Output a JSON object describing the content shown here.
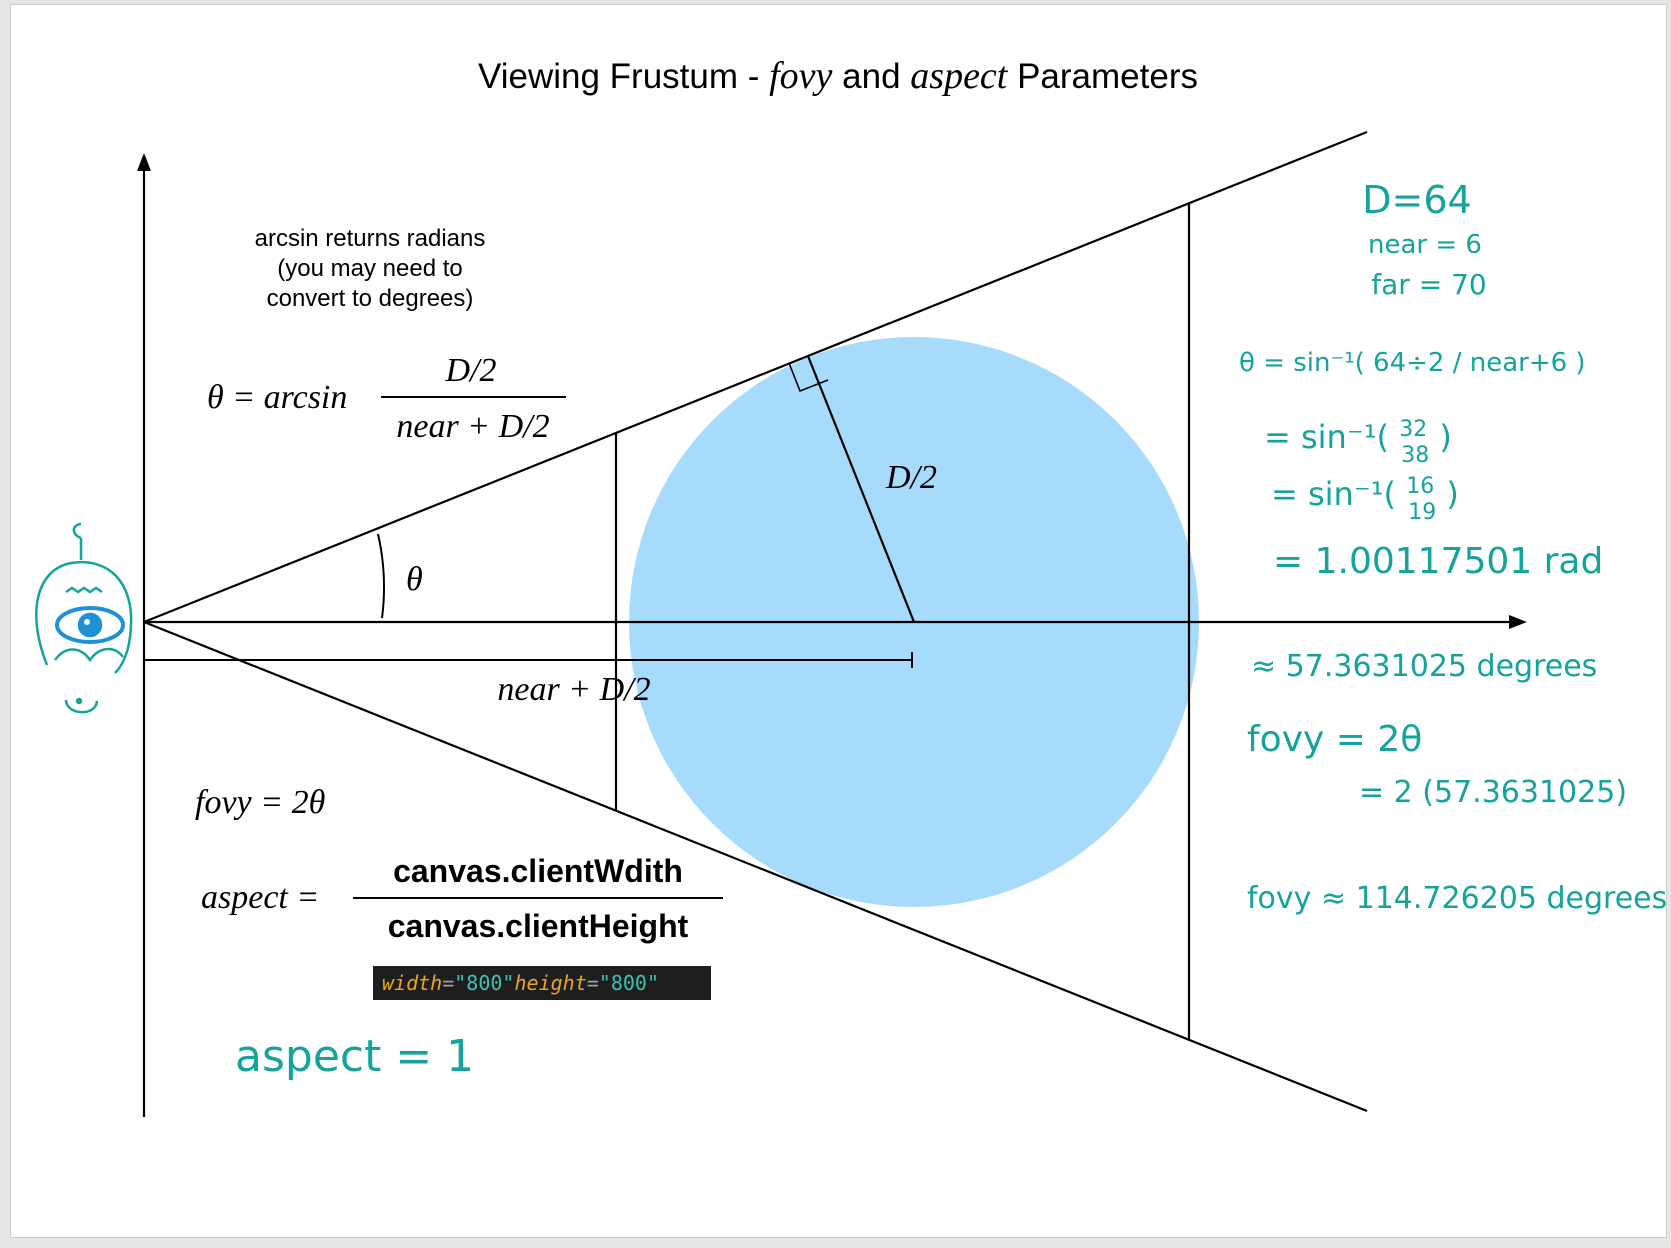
{
  "title": {
    "prefix": "Viewing Frustum - ",
    "fovy": "fovy",
    "middle": " and ",
    "aspect": "aspect",
    "suffix": " Parameters"
  },
  "note": {
    "line1": "arcsin returns radians",
    "line2": "(you may need to",
    "line3": "convert to degrees)"
  },
  "theta_formula": {
    "lhs": "θ = arcsin",
    "numerator": "D/2",
    "denominator": "near + D/2"
  },
  "labels": {
    "theta": "θ",
    "radius": "D/2",
    "distance": "near + D/2"
  },
  "fovy_formula": "fovy = 2θ",
  "aspect_formula": {
    "lhs": "aspect =",
    "numerator": "canvas.clientWdith",
    "denominator": "canvas.clientHeight"
  },
  "code": {
    "width_attr": "width",
    "eq": "=",
    "width_val": "\"800\"",
    "height_attr": "height",
    "height_val": "\"800\""
  },
  "handwritten": {
    "d": "D=64",
    "near": "near = 6",
    "far": "far = 70",
    "step1": "θ = sin⁻¹( 64÷2 / near+6 )",
    "step2_prefix": "= sin⁻¹(",
    "step2_num": "32",
    "step2_den": "38",
    "step3_prefix": "= sin⁻¹(",
    "step3_num": "16",
    "step3_den": "19",
    "step4": "= 1.00117501 rad",
    "approx_degrees": "≈ 57.3631025 degrees",
    "fovy_eq": "fovy = 2θ",
    "fovy_sub": "= 2 (57.3631025)",
    "fovy_result": "fovy ≈ 114.726205 degrees",
    "aspect_result": "aspect = 1"
  },
  "colors": {
    "sphere": "#a6dbfb",
    "handwriting": "#15a39a",
    "eye": "#1f8fd6",
    "code_bg": "#1e1e1e"
  },
  "icons": {
    "eye": "eye-icon"
  }
}
